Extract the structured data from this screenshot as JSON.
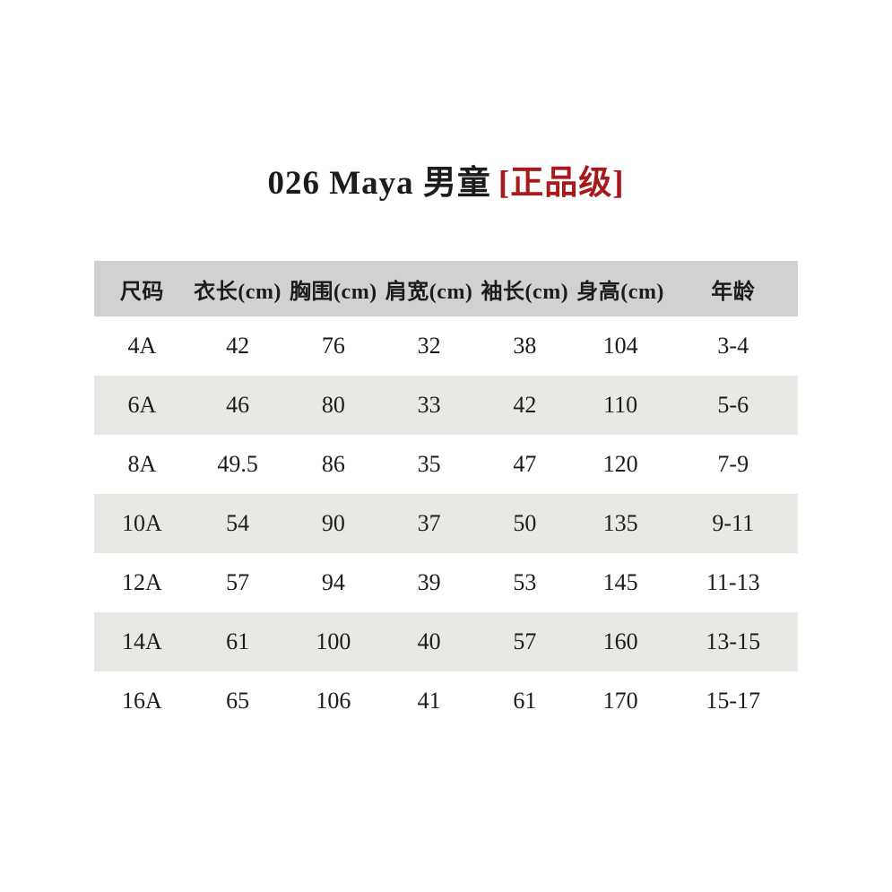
{
  "title": {
    "main": "026 Maya 男童",
    "highlight": "[正品级]",
    "highlight_color": "#a8191d"
  },
  "table": {
    "header_bg": "#d2d1cf",
    "alt_row_bg": "#e9e8e5",
    "columns": [
      "尺码",
      "衣长(cm)",
      "胸围(cm)",
      "肩宽(cm)",
      "袖长(cm)",
      "身高(cm)",
      "年龄"
    ],
    "rows": [
      [
        "4A",
        "42",
        "76",
        "32",
        "38",
        "104",
        "3-4"
      ],
      [
        "6A",
        "46",
        "80",
        "33",
        "42",
        "110",
        "5-6"
      ],
      [
        "8A",
        "49.5",
        "86",
        "35",
        "47",
        "120",
        "7-9"
      ],
      [
        "10A",
        "54",
        "90",
        "37",
        "50",
        "135",
        "9-11"
      ],
      [
        "12A",
        "57",
        "94",
        "39",
        "53",
        "145",
        "11-13"
      ],
      [
        "14A",
        "61",
        "100",
        "40",
        "57",
        "160",
        "13-15"
      ],
      [
        "16A",
        "65",
        "106",
        "41",
        "61",
        "170",
        "15-17"
      ]
    ]
  }
}
